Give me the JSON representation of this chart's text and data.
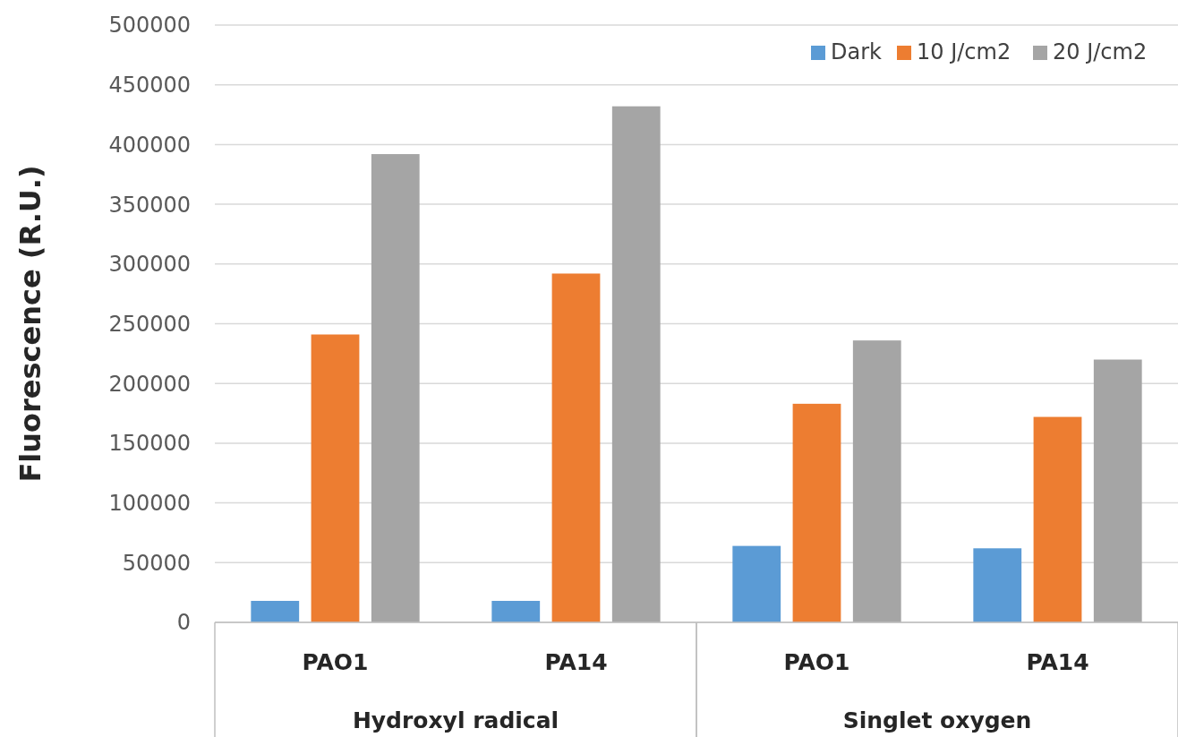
{
  "chart_data": {
    "type": "bar",
    "ylabel": "Fluorescence (R.U.)",
    "categories": [
      "PAO1",
      "PA14",
      "PAO1",
      "PA14"
    ],
    "series": [
      {
        "name": "Dark",
        "color": "#5b9bd5",
        "values": [
          18000,
          18000,
          64000,
          62000
        ]
      },
      {
        "name": "10 J/cm2",
        "color": "#ed7d31",
        "values": [
          241000,
          292000,
          183000,
          172000
        ]
      },
      {
        "name": "20 J/cm2",
        "color": "#a5a5a5",
        "values": [
          392000,
          432000,
          236000,
          220000
        ]
      }
    ],
    "ylim": [
      0,
      500000
    ],
    "yticks": [
      0,
      50000,
      100000,
      150000,
      200000,
      250000,
      300000,
      350000,
      400000,
      450000,
      500000
    ],
    "grid": "y",
    "legend": "top right",
    "annotations": [
      "Hydroxyl radical",
      "Singlet oxygen"
    ]
  }
}
